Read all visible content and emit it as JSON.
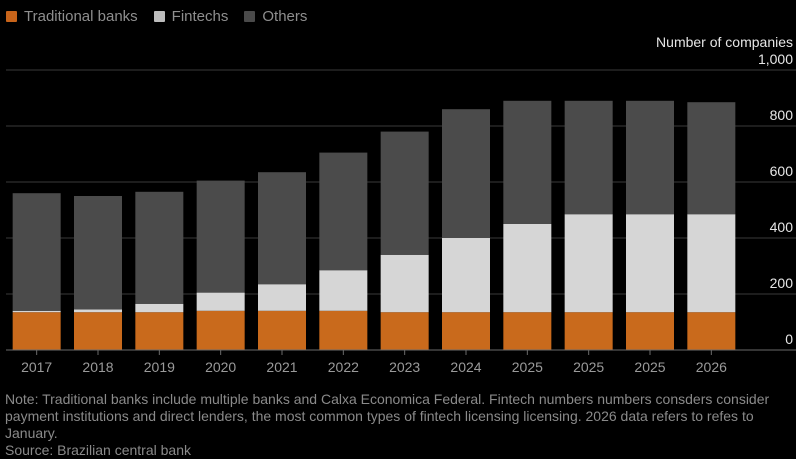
{
  "legend": {
    "items": [
      {
        "label": "Traditional banks",
        "color": "#c8641a"
      },
      {
        "label": "Fintechs",
        "color": "#bdbdbd"
      },
      {
        "label": "Others",
        "color": "#4a4a4a"
      }
    ]
  },
  "unit_label": "Number of companies",
  "note": "Note: Traditional banks include multiple banks and Calxa Economica Federal. Fintech numbers numbers consders consider payment institutions and direct lenders, the most common types of fintech licensing licensing. 2026 data refers to refes to January.",
  "source": "Source: Brazilian central bank",
  "colors": {
    "traditional": "#c96a1c",
    "fintech": "#d6d6d6",
    "others": "#4b4b4b",
    "gridline": "#3a3a3a",
    "axis": "#6a6a6a"
  },
  "chart_data": {
    "type": "bar",
    "stacked": true,
    "categories": [
      "2017",
      "2018",
      "2019",
      "2020",
      "2021",
      "2022",
      "2023",
      "2024",
      "2025",
      "2025",
      "2025",
      "2026"
    ],
    "series": [
      {
        "name": "Traditional banks",
        "values": [
          135,
          135,
          135,
          140,
          140,
          140,
          135,
          135,
          135,
          135,
          135,
          135
        ]
      },
      {
        "name": "Fintechs",
        "values": [
          5,
          10,
          30,
          65,
          95,
          145,
          205,
          265,
          315,
          350,
          350,
          350
        ]
      },
      {
        "name": "Others",
        "values": [
          420,
          405,
          400,
          400,
          400,
          420,
          440,
          460,
          440,
          405,
          405,
          400
        ]
      }
    ],
    "ylim": [
      0,
      1000
    ],
    "yticks": [
      0,
      200,
      400,
      600,
      800,
      1000
    ],
    "ytick_labels": [
      "0",
      "200",
      "400",
      "600",
      "800",
      "1,000"
    ],
    "ylabel": "Number of companies",
    "grid": true,
    "legend_position": "top-left"
  }
}
